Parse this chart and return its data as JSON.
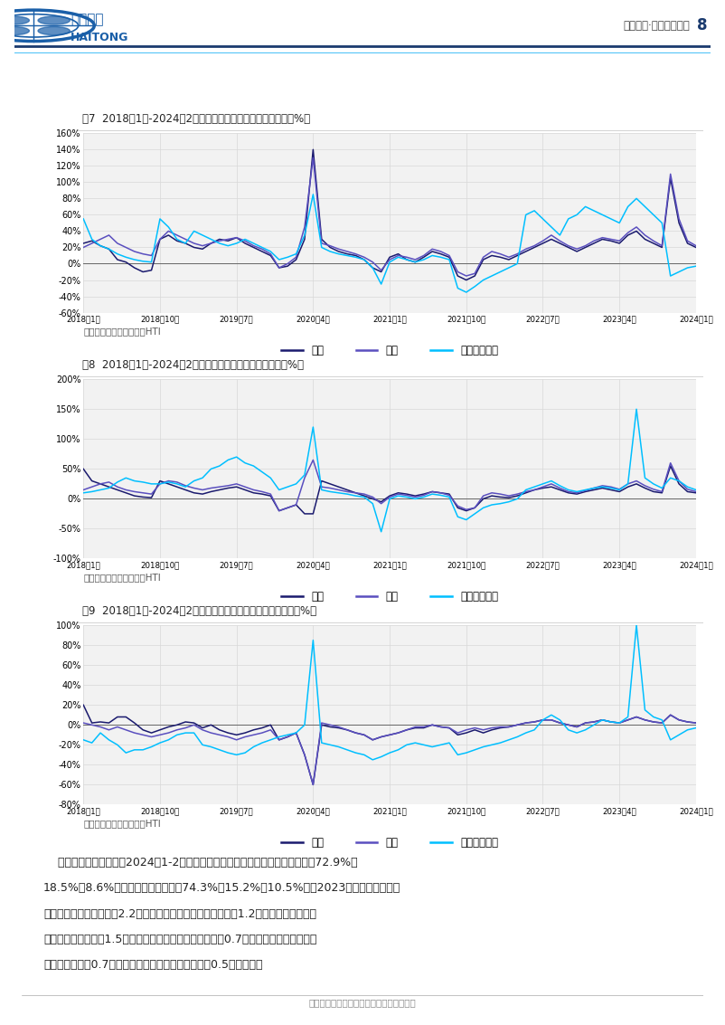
{
  "page_title": "行业研究·交通运输行业",
  "page_num": "8",
  "source_text": "资料来源：国家邮政局，HTI",
  "fig7_title": "图7  2018年1月-2024年2月快递行业分板块业务量增速情况（%）",
  "fig8_title": "图8  2018年1月-2024年2月快递行业分板块收入增速情况（%）",
  "fig9_title": "图9  2018年1月-2024年2月快递行业分板块单票收入增速情况（%）",
  "x_labels": [
    "2018年1月",
    "2018年10月",
    "2019年7月",
    "2020年4月",
    "2021年1月",
    "2021年10月",
    "2022年7月",
    "2023年4月",
    "2024年1月"
  ],
  "fig7_ylim": [
    -60,
    160
  ],
  "fig7_yticks": [
    -60,
    -40,
    -20,
    0,
    20,
    40,
    60,
    80,
    100,
    120,
    140,
    160
  ],
  "fig7_ytick_labels": [
    "-60%",
    "-40%",
    "-20%",
    "0%",
    "20%",
    "40%",
    "60%",
    "80%",
    "100%",
    "120%",
    "140%",
    "160%"
  ],
  "fig8_ylim": [
    -100,
    200
  ],
  "fig8_yticks": [
    -100,
    -50,
    0,
    50,
    100,
    150,
    200
  ],
  "fig8_ytick_labels": [
    "-100%",
    "-50%",
    "0%",
    "50%",
    "100%",
    "150%",
    "200%"
  ],
  "fig9_ylim": [
    -80,
    100
  ],
  "fig9_yticks": [
    -80,
    -60,
    -40,
    -20,
    0,
    20,
    40,
    60,
    80,
    100
  ],
  "fig9_ytick_labels": [
    "-80%",
    "-60%",
    "-40%",
    "-20%",
    "0%",
    "20%",
    "40%",
    "60%",
    "80%",
    "100%"
  ],
  "legend_labels": [
    "同城",
    "异地",
    "国际及港澳台"
  ],
  "line_colors": [
    "#1a1a6e",
    "#5a4fbf",
    "#00bfff"
  ],
  "fig7_tongcheng": [
    25,
    28,
    22,
    18,
    5,
    2,
    -5,
    -10,
    -8,
    30,
    35,
    28,
    25,
    20,
    18,
    25,
    30,
    28,
    32,
    25,
    20,
    15,
    10,
    -5,
    -3,
    5,
    30,
    140,
    30,
    20,
    15,
    12,
    10,
    5,
    -5,
    -10,
    8,
    12,
    5,
    2,
    8,
    15,
    12,
    8,
    -15,
    -20,
    -15,
    5,
    10,
    8,
    5,
    10,
    15,
    20,
    25,
    30,
    25,
    20,
    15,
    20,
    25,
    30,
    28,
    25,
    35,
    40,
    30,
    25,
    20,
    105,
    50,
    25,
    20
  ],
  "fig7_yidi": [
    20,
    25,
    30,
    35,
    25,
    20,
    15,
    12,
    10,
    30,
    40,
    35,
    30,
    25,
    22,
    25,
    28,
    30,
    32,
    28,
    22,
    18,
    12,
    -5,
    0,
    8,
    45,
    130,
    25,
    22,
    18,
    15,
    12,
    8,
    2,
    -8,
    5,
    10,
    8,
    5,
    10,
    18,
    15,
    10,
    -10,
    -15,
    -12,
    8,
    15,
    12,
    8,
    12,
    18,
    22,
    28,
    35,
    28,
    22,
    18,
    22,
    28,
    32,
    30,
    28,
    38,
    45,
    35,
    28,
    22,
    110,
    55,
    28,
    22
  ],
  "fig7_intl": [
    55,
    30,
    22,
    18,
    12,
    8,
    5,
    3,
    2,
    55,
    45,
    30,
    25,
    40,
    35,
    30,
    25,
    22,
    25,
    30,
    25,
    20,
    15,
    5,
    8,
    12,
    35,
    85,
    20,
    15,
    12,
    10,
    8,
    5,
    -5,
    -25,
    2,
    8,
    5,
    2,
    5,
    10,
    8,
    5,
    -30,
    -35,
    -28,
    -20,
    -15,
    -10,
    -5,
    0,
    60,
    65,
    55,
    45,
    35,
    55,
    60,
    70,
    65,
    60,
    55,
    50,
    70,
    80,
    70,
    60,
    50,
    -15,
    -10,
    -5,
    -3
  ],
  "fig8_tongcheng": [
    50,
    30,
    25,
    20,
    15,
    10,
    5,
    3,
    2,
    30,
    25,
    20,
    15,
    10,
    8,
    12,
    15,
    18,
    20,
    15,
    10,
    8,
    5,
    -20,
    -15,
    -10,
    -25,
    -25,
    30,
    25,
    20,
    15,
    10,
    5,
    0,
    -5,
    5,
    10,
    8,
    5,
    8,
    12,
    10,
    8,
    -15,
    -20,
    -15,
    0,
    5,
    3,
    2,
    5,
    10,
    15,
    18,
    20,
    15,
    10,
    8,
    12,
    15,
    18,
    15,
    12,
    20,
    25,
    18,
    12,
    10,
    55,
    25,
    12,
    10
  ],
  "fig8_yidi": [
    15,
    20,
    25,
    28,
    20,
    15,
    12,
    10,
    8,
    25,
    30,
    28,
    22,
    18,
    15,
    18,
    20,
    22,
    25,
    20,
    15,
    12,
    8,
    -20,
    -15,
    -10,
    35,
    65,
    20,
    18,
    15,
    12,
    10,
    8,
    3,
    -8,
    3,
    8,
    6,
    3,
    6,
    12,
    10,
    6,
    -12,
    -18,
    -15,
    5,
    10,
    8,
    5,
    8,
    12,
    15,
    20,
    25,
    18,
    12,
    10,
    14,
    18,
    22,
    20,
    16,
    25,
    30,
    22,
    16,
    12,
    60,
    30,
    16,
    12
  ],
  "fig8_intl": [
    10,
    12,
    15,
    18,
    28,
    35,
    30,
    28,
    25,
    25,
    28,
    25,
    20,
    30,
    35,
    50,
    55,
    65,
    70,
    60,
    55,
    45,
    35,
    15,
    20,
    25,
    40,
    120,
    15,
    12,
    10,
    8,
    5,
    3,
    -8,
    -55,
    0,
    5,
    3,
    0,
    3,
    8,
    6,
    3,
    -30,
    -35,
    -25,
    -15,
    -10,
    -8,
    -5,
    0,
    15,
    20,
    25,
    30,
    22,
    15,
    12,
    15,
    18,
    20,
    18,
    15,
    25,
    150,
    35,
    25,
    18,
    35,
    30,
    20,
    15
  ],
  "fig9_tongcheng": [
    20,
    2,
    3,
    2,
    8,
    8,
    2,
    -5,
    -8,
    -5,
    -2,
    0,
    3,
    2,
    -3,
    0,
    -5,
    -8,
    -10,
    -8,
    -5,
    -3,
    0,
    -15,
    -12,
    -8,
    -30,
    -60,
    0,
    -2,
    -3,
    -5,
    -8,
    -10,
    -15,
    -12,
    -10,
    -8,
    -5,
    -3,
    -3,
    0,
    -2,
    -3,
    -10,
    -8,
    -5,
    -8,
    -5,
    -3,
    -2,
    0,
    2,
    3,
    5,
    5,
    2,
    0,
    -2,
    2,
    3,
    5,
    3,
    2,
    5,
    8,
    5,
    3,
    2,
    10,
    5,
    3,
    2
  ],
  "fig9_yidi": [
    2,
    0,
    -2,
    -5,
    -2,
    -5,
    -8,
    -10,
    -12,
    -10,
    -8,
    -5,
    -3,
    0,
    -5,
    -8,
    -10,
    -12,
    -15,
    -12,
    -10,
    -8,
    -5,
    -15,
    -12,
    -8,
    -30,
    -60,
    2,
    0,
    -2,
    -5,
    -8,
    -10,
    -15,
    -12,
    -10,
    -8,
    -5,
    -2,
    -2,
    0,
    -2,
    -3,
    -8,
    -5,
    -3,
    -5,
    -3,
    -2,
    -2,
    0,
    2,
    3,
    5,
    5,
    2,
    0,
    -2,
    2,
    3,
    5,
    3,
    2,
    5,
    8,
    5,
    3,
    2,
    10,
    5,
    3,
    2
  ],
  "fig9_intl": [
    -15,
    -18,
    -8,
    -15,
    -20,
    -28,
    -25,
    -25,
    -22,
    -18,
    -15,
    -10,
    -8,
    -8,
    -20,
    -22,
    -25,
    -28,
    -30,
    -28,
    -22,
    -18,
    -15,
    -12,
    -10,
    -8,
    0,
    85,
    -18,
    -20,
    -22,
    -25,
    -28,
    -30,
    -35,
    -32,
    -28,
    -25,
    -20,
    -18,
    -20,
    -22,
    -20,
    -18,
    -30,
    -28,
    -25,
    -22,
    -20,
    -18,
    -15,
    -12,
    -8,
    -5,
    5,
    10,
    5,
    -5,
    -8,
    -5,
    0,
    5,
    3,
    2,
    8,
    100,
    15,
    8,
    5,
    -15,
    -10,
    -5,
    -3
  ],
  "bottom_text_line1": "    根据国家邮政局官网，2024年1-2月，东、中、西部地区快递业务量比重分别为72.9%、",
  "bottom_text_line2": "18.5%和8.6%，业务收入比重分别为74.3%、15.2%和10.5%。与2023年同期相比，东部",
  "bottom_text_line3": "地区快递业务量比重下降2.2个百分点，快递业务收入比重下降1.2个百分点；中部地区",
  "bottom_text_line4": "快递业务量比重上升1.5个百分点，快递业务收入比重上升0.7个百分点；西部地区快递",
  "bottom_text_line5": "业务量比重上升0.7个百分点，快递业务收入比重上升0.5个百分点。",
  "footer_text": "请务必阅读正文之后的信息披露和法律声明",
  "bg_color": "#ffffff",
  "chart_bg": "#f2f2f2",
  "grid_color": "#d8d8d8",
  "header_line_color1": "#1a3a6e",
  "header_line_color2": "#4fc3f7",
  "title_underline": "#cccccc"
}
